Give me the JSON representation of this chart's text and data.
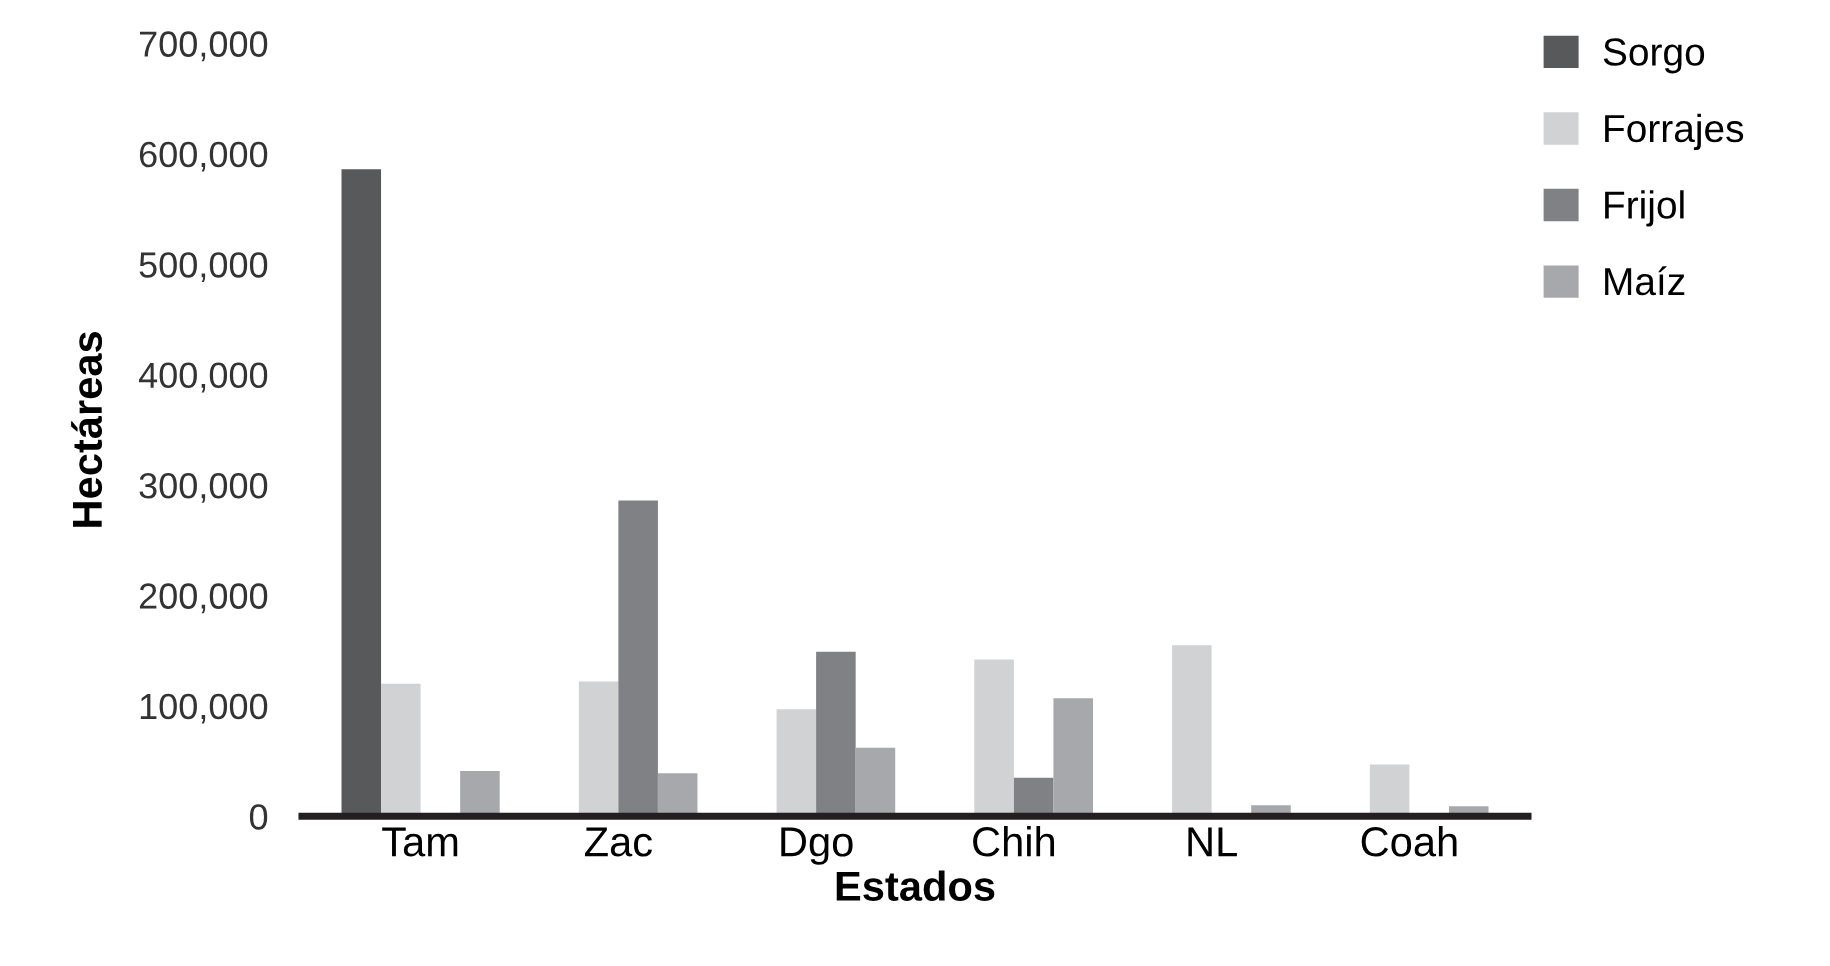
{
  "chart_data": {
    "type": "bar",
    "xlabel": "Estados",
    "ylabel": "Hectáreas",
    "categories": [
      "Tam",
      "Zac",
      "Dgo",
      "Chih",
      "NL",
      "Coah"
    ],
    "series": [
      {
        "name": "Sorgo",
        "color": "#58595b",
        "values": [
          586000,
          null,
          null,
          null,
          null,
          null
        ]
      },
      {
        "name": "Forrajes",
        "color": "#d1d2d4",
        "values": [
          120000,
          122000,
          97000,
          142000,
          155000,
          47000
        ]
      },
      {
        "name": "Frijol",
        "color": "#808184",
        "values": [
          null,
          286000,
          149000,
          35000,
          null,
          null
        ]
      },
      {
        "name": "Maíz",
        "color": "#a7a8ab",
        "values": [
          41000,
          39000,
          62000,
          107000,
          10000,
          9000
        ]
      }
    ],
    "ylim": [
      0,
      700000
    ],
    "yticks": [
      {
        "value": 0,
        "label": "0"
      },
      {
        "value": 100000,
        "label": "100,000"
      },
      {
        "value": 200000,
        "label": "200,000"
      },
      {
        "value": 300000,
        "label": "300,000"
      },
      {
        "value": 400000,
        "label": "400,000"
      },
      {
        "value": 500000,
        "label": "500,000"
      },
      {
        "value": 600000,
        "label": "600,000"
      },
      {
        "value": 700000,
        "label": "700,000"
      }
    ],
    "grid": false,
    "legend": "top right"
  }
}
